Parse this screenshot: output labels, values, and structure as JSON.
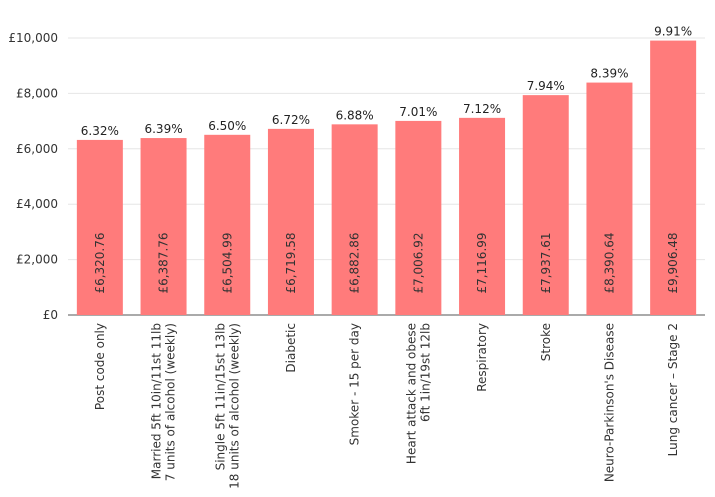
{
  "chart_data": {
    "type": "bar",
    "categories": [
      [
        "Post code only"
      ],
      [
        "Married 5ft 10in/11st 11lb",
        "7 units of alcohol (weekly)"
      ],
      [
        "Single 5ft 11in/15st 13lb",
        "18 units of alcohol (weekly)"
      ],
      [
        "Diabetic"
      ],
      [
        "Smoker - 15 per day"
      ],
      [
        "Heart attack and obese",
        "6ft 1in/19st 12lb"
      ],
      [
        "Respiratory"
      ],
      [
        "Stroke"
      ],
      [
        "Neuro-Parkinson's Disease"
      ],
      [
        "Lung cancer – Stage 2"
      ]
    ],
    "values": [
      6320.76,
      6387.76,
      6504.99,
      6719.58,
      6882.86,
      7006.92,
      7116.99,
      7937.61,
      8390.64,
      9906.48
    ],
    "value_labels": [
      "£6,320.76",
      "£6,387.76",
      "£6,504.99",
      "£6,719.58",
      "£6,882.86",
      "£7,006.92",
      "£7,116.99",
      "£7,937.61",
      "£8,390.64",
      "£9,906.48"
    ],
    "percent_labels": [
      "6.32%",
      "6.39%",
      "6.50%",
      "6.72%",
      "6.88%",
      "7.01%",
      "7.12%",
      "7.94%",
      "8.39%",
      "9.91%"
    ],
    "yticks": [
      0,
      2000,
      4000,
      6000,
      8000,
      10000
    ],
    "ytick_labels": [
      "£0",
      "£2,000",
      "£4,000",
      "£6,000",
      "£8,000",
      "£10,000"
    ],
    "ylim": [
      0,
      10000
    ],
    "grid": true,
    "title": "",
    "xlabel": "",
    "ylabel": "",
    "colors": {
      "bar": "#ff7b7b",
      "grid": "#e6e6e6",
      "axis": "#555555"
    }
  }
}
